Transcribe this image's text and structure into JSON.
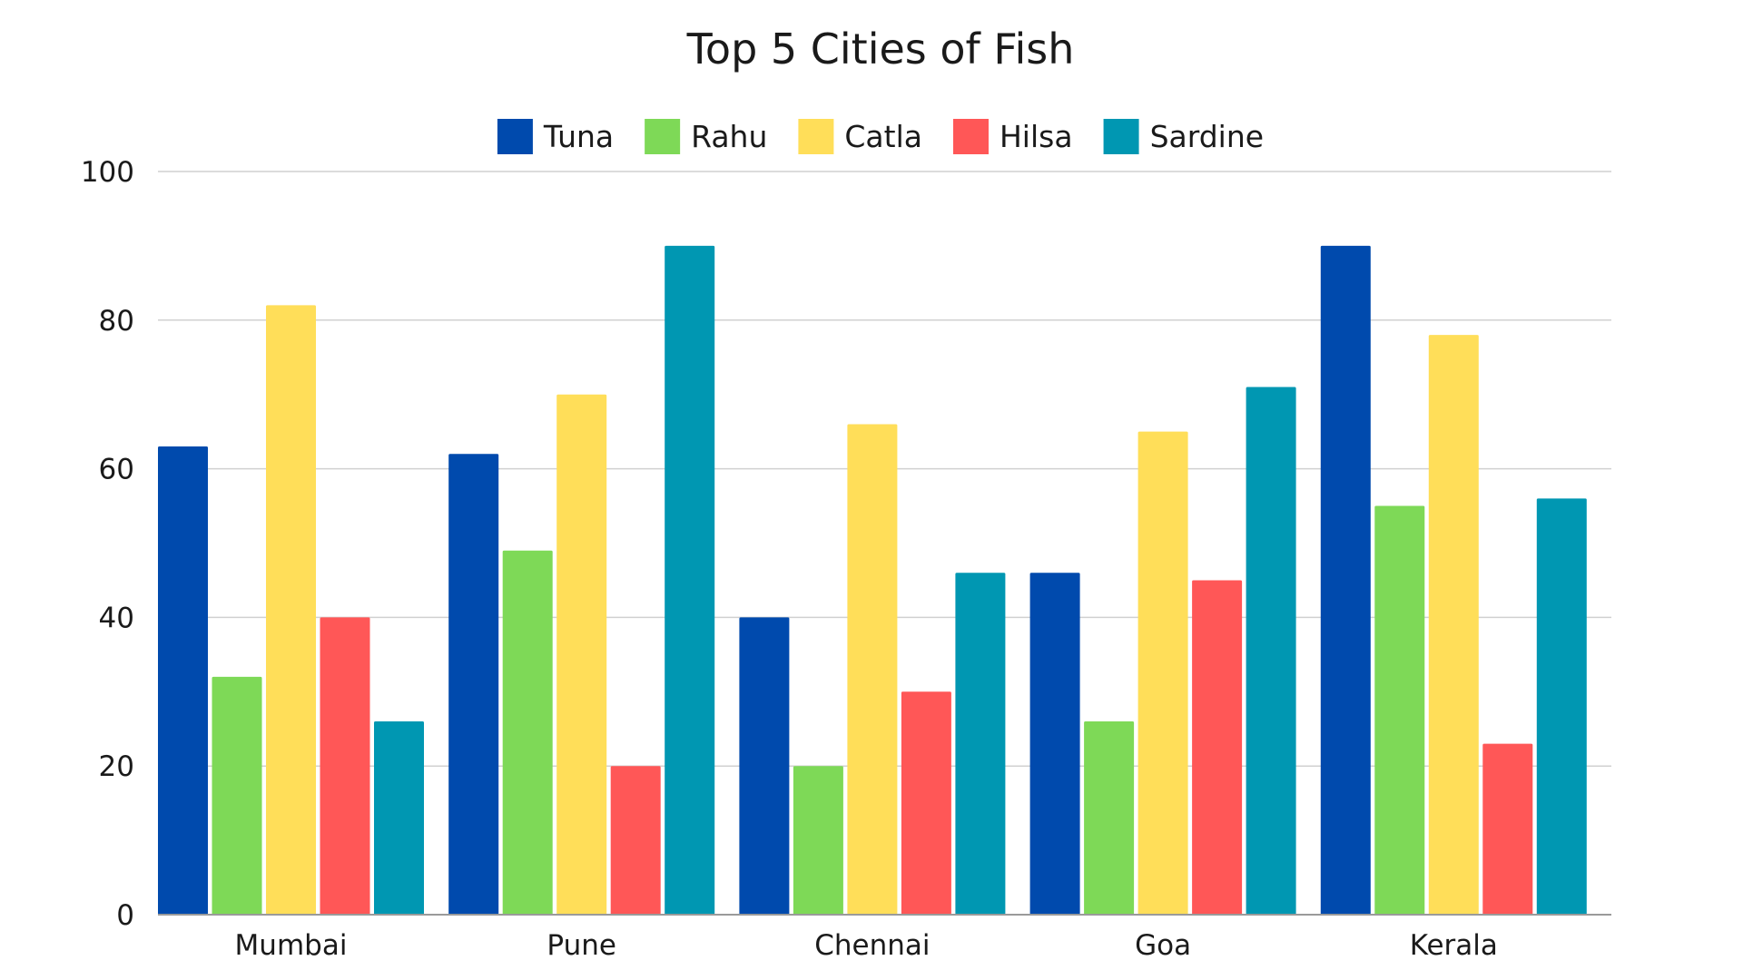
{
  "chart_data": {
    "type": "bar",
    "title": "Top 5 Cities of Fish",
    "xlabel": "",
    "ylabel": "",
    "categories": [
      "Mumbai",
      "Pune",
      "Chennai",
      "Goa",
      "Kerala"
    ],
    "series": [
      {
        "name": "Tuna",
        "color": "#004aad",
        "values": [
          63,
          62,
          40,
          46,
          90
        ]
      },
      {
        "name": "Rahu",
        "color": "#7ed957",
        "values": [
          32,
          49,
          20,
          26,
          55
        ]
      },
      {
        "name": "Catla",
        "color": "#ffde59",
        "values": [
          82,
          70,
          66,
          65,
          78
        ]
      },
      {
        "name": "Hilsa",
        "color": "#ff5757",
        "values": [
          40,
          20,
          30,
          45,
          23
        ]
      },
      {
        "name": "Sardine",
        "color": "#0097b2",
        "values": [
          26,
          90,
          46,
          71,
          56
        ]
      }
    ],
    "ylim": [
      0,
      100
    ],
    "yticks": [
      0,
      20,
      40,
      60,
      80,
      100
    ],
    "grid": true,
    "legend_position": "top"
  }
}
